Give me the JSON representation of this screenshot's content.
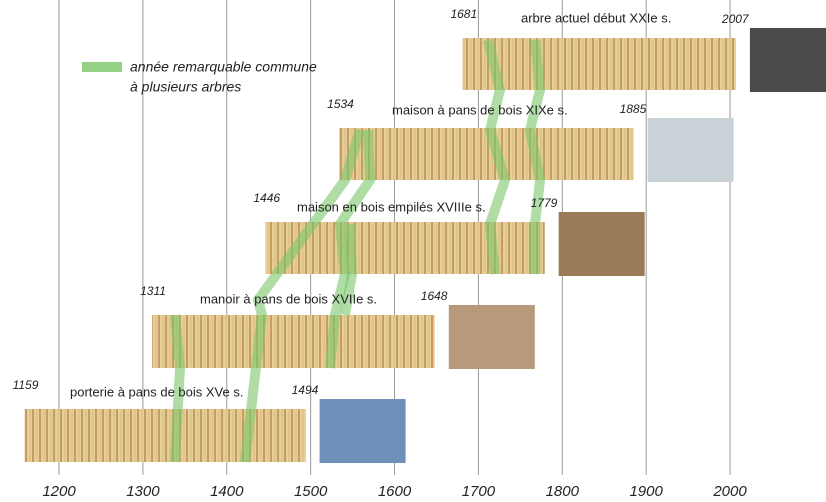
{
  "legend": [
    "année remarquable commune",
    "à plusieurs arbres"
  ],
  "axis": {
    "ticks": [
      1200,
      1300,
      1400,
      1500,
      1600,
      1700,
      1800,
      1900,
      2000
    ]
  },
  "strips": [
    {
      "start": 1159,
      "end": 1494,
      "label": "porterie à pans de bois XVe s."
    },
    {
      "start": 1311,
      "end": 1648,
      "label": "manoir à pans de bois XVIIe s."
    },
    {
      "start": 1446,
      "end": 1779,
      "label": "maison en bois empilés XVIIIe s."
    },
    {
      "start": 1534,
      "end": 1885,
      "label": "maison à pans de bois XIXe s."
    },
    {
      "start": 1681,
      "end": 2007,
      "label": "arbre actuel début XXIe s."
    }
  ]
}
